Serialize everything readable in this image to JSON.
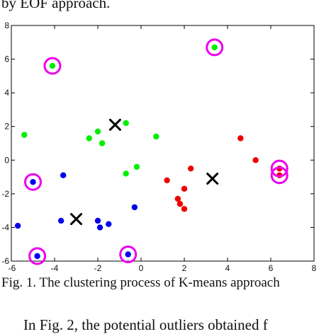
{
  "paper": {
    "top_text": "by EOF approach.",
    "caption": "Fig. 1.   The clustering process of K-means approach",
    "bottom_text": "In Fig. 2, the potential outliers obtained f"
  },
  "chart_data": {
    "type": "scatter",
    "title": "",
    "xlabel": "",
    "ylabel": "",
    "xlim": [
      -6,
      8
    ],
    "ylim": [
      -6,
      8
    ],
    "xticks": [
      -6,
      -4,
      -2,
      0,
      2,
      4,
      6,
      8
    ],
    "yticks": [
      -6,
      -4,
      -2,
      0,
      2,
      4,
      6,
      8
    ],
    "grid": false,
    "legend": false,
    "series": [
      {
        "color": "#00ee00",
        "points": [
          [
            -4.1,
            5.6
          ],
          [
            3.4,
            6.7
          ],
          [
            -5.4,
            1.5
          ],
          [
            -2.4,
            1.3
          ],
          [
            -2.0,
            1.7
          ],
          [
            -1.8,
            1.0
          ],
          [
            -0.7,
            2.2
          ],
          [
            0.7,
            1.4
          ],
          [
            -0.2,
            -0.4
          ],
          [
            -0.7,
            -0.8
          ]
        ]
      },
      {
        "color": "#ee0000",
        "points": [
          [
            4.6,
            1.3
          ],
          [
            5.3,
            0.0
          ],
          [
            6.4,
            -0.5
          ],
          [
            6.4,
            -0.9
          ],
          [
            2.3,
            -0.5
          ],
          [
            1.2,
            -1.2
          ],
          [
            2.0,
            -1.7
          ],
          [
            1.7,
            -2.3
          ],
          [
            1.8,
            -2.6
          ],
          [
            2.0,
            -2.9
          ]
        ]
      },
      {
        "color": "#0000ee",
        "points": [
          [
            -5.0,
            -1.3
          ],
          [
            -3.6,
            -0.9
          ],
          [
            -3.7,
            -3.6
          ],
          [
            -5.7,
            -3.9
          ],
          [
            -4.8,
            -5.7
          ],
          [
            -0.6,
            -5.6
          ],
          [
            -2.0,
            -3.6
          ],
          [
            -1.9,
            -4.0
          ],
          [
            -1.5,
            -3.8
          ],
          [
            -0.3,
            -2.8
          ]
        ]
      }
    ],
    "centroids": [
      [
        -1.2,
        2.1
      ],
      [
        3.3,
        -1.1
      ],
      [
        -3.0,
        -3.5
      ]
    ],
    "outliers": [
      [
        -4.1,
        5.6
      ],
      [
        3.4,
        6.7
      ],
      [
        -5.0,
        -1.3
      ],
      [
        -4.8,
        -5.7
      ],
      [
        -0.6,
        -5.6
      ],
      [
        6.4,
        -0.5
      ],
      [
        6.4,
        -0.9
      ]
    ],
    "colors": {
      "centroid": "#000000",
      "outlier_ring": "#ee00ee",
      "axis": "#000000"
    }
  }
}
